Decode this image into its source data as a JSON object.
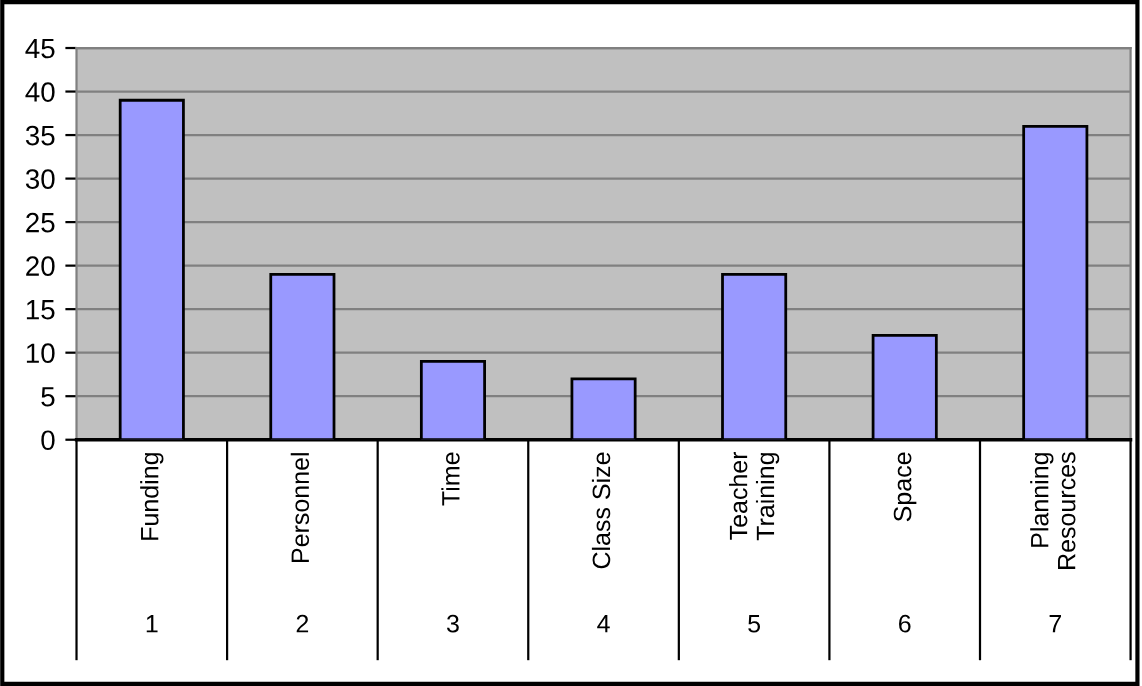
{
  "chart_data": {
    "type": "bar",
    "categories": [
      "Funding",
      "Personnel",
      "Time",
      "Class Size",
      "Teacher\nTraining",
      "Space",
      "Planning\nResources"
    ],
    "values": [
      39,
      19,
      9,
      7,
      19,
      12,
      36
    ],
    "color": "#9999ff",
    "ylim": [
      0,
      45
    ],
    "yticks": [
      0,
      5,
      10,
      15,
      20,
      25,
      30,
      35,
      40,
      45
    ],
    "grid": "y",
    "annotations": [
      "1",
      "2",
      "3",
      "4",
      "5",
      "6",
      "7"
    ]
  }
}
